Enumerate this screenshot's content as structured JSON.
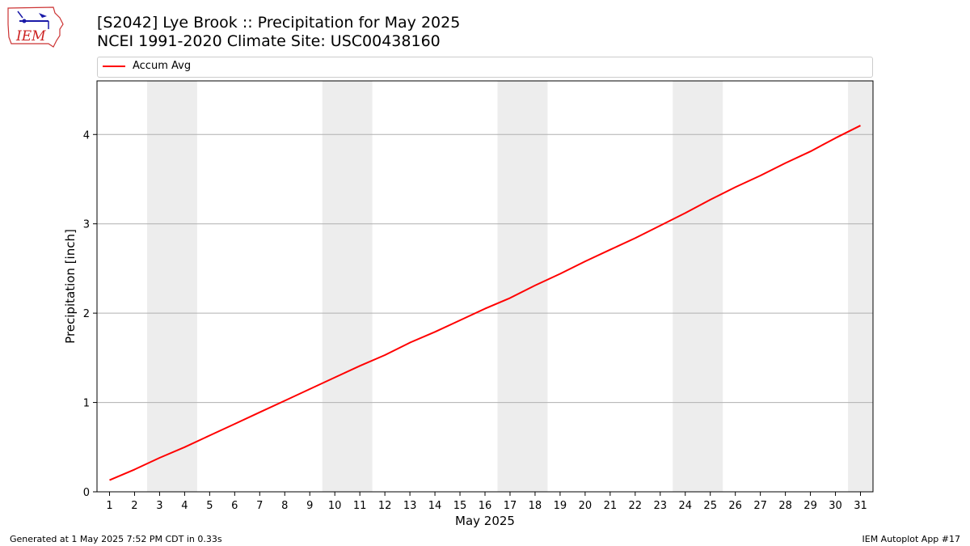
{
  "header": {
    "title_line1": "[S2042] Lye Brook :: Precipitation for May 2025",
    "title_line2": "NCEI 1991-2020 Climate Site: USC00438160"
  },
  "logo": {
    "text": "IEM"
  },
  "footer": {
    "left": "Generated at 1 May 2025 7:52 PM CDT in 0.33s",
    "right": "IEM Autoplot App #17"
  },
  "colors": {
    "series": "#ff0000",
    "weekend_shade": "#ededed",
    "grid": "#b0b0b0"
  },
  "chart_data": {
    "type": "line",
    "title": "[S2042] Lye Brook :: Precipitation for May 2025",
    "subtitle": "NCEI 1991-2020 Climate Site: USC00438160",
    "xlabel": "May 2025",
    "ylabel": "Precipitation [inch]",
    "x": [
      1,
      2,
      3,
      4,
      5,
      6,
      7,
      8,
      9,
      10,
      11,
      12,
      13,
      14,
      15,
      16,
      17,
      18,
      19,
      20,
      21,
      22,
      23,
      24,
      25,
      26,
      27,
      28,
      29,
      30,
      31
    ],
    "x_tick_labels": [
      "1",
      "2",
      "3",
      "4",
      "5",
      "6",
      "7",
      "8",
      "9",
      "10",
      "11",
      "12",
      "13",
      "14",
      "15",
      "16",
      "17",
      "18",
      "19",
      "20",
      "21",
      "22",
      "23",
      "24",
      "25",
      "26",
      "27",
      "28",
      "29",
      "30",
      "31"
    ],
    "xlim": [
      0.5,
      31.5
    ],
    "ylim": [
      0,
      4.6
    ],
    "y_ticks": [
      0,
      1,
      2,
      3,
      4
    ],
    "grid": "horizontal",
    "legend": "top",
    "weekend_bands": [
      [
        2.5,
        4.5
      ],
      [
        9.5,
        11.5
      ],
      [
        16.5,
        18.5
      ],
      [
        23.5,
        25.5
      ],
      [
        30.5,
        31.5
      ]
    ],
    "series": [
      {
        "name": "Accum Avg",
        "values": [
          0.13,
          0.25,
          0.38,
          0.5,
          0.63,
          0.76,
          0.89,
          1.02,
          1.15,
          1.28,
          1.41,
          1.53,
          1.67,
          1.79,
          1.92,
          2.05,
          2.17,
          2.31,
          2.44,
          2.58,
          2.71,
          2.84,
          2.98,
          3.12,
          3.27,
          3.41,
          3.54,
          3.68,
          3.81,
          3.96,
          4.1
        ]
      }
    ]
  }
}
